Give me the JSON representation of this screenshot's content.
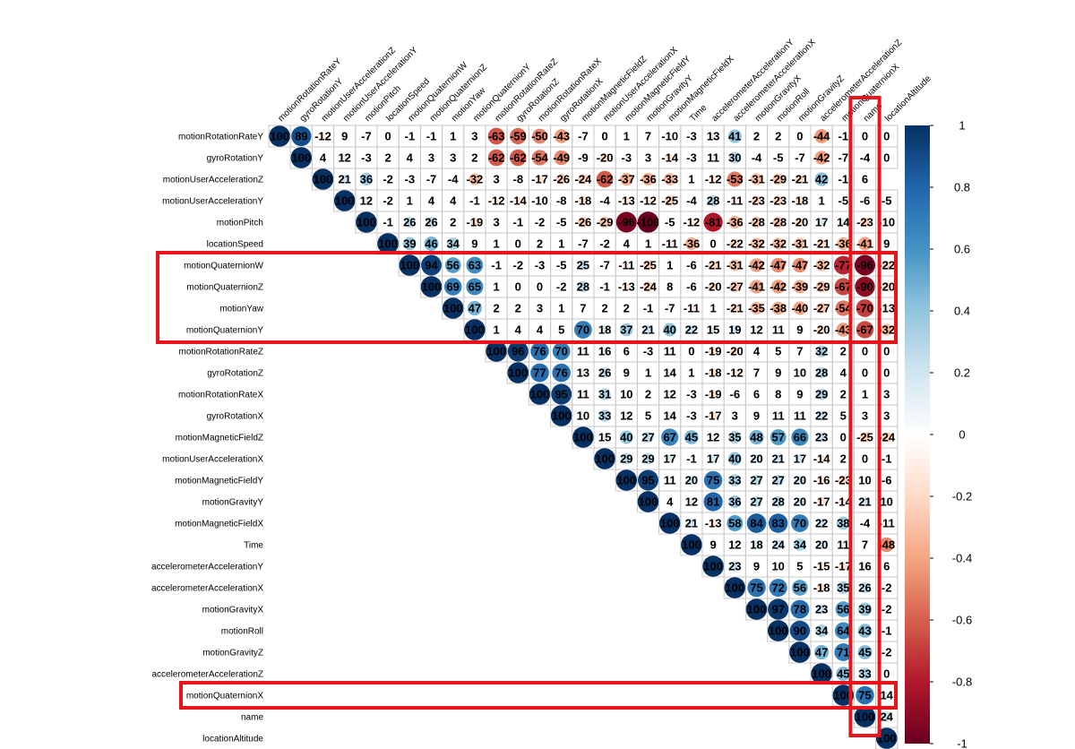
{
  "chart_data": {
    "type": "heatmap",
    "variables": [
      "motionRotationRateY",
      "gyroRotationY",
      "motionUserAccelerationZ",
      "motionUserAccelerationY",
      "motionPitch",
      "locationSpeed",
      "motionQuaternionW",
      "motionQuaternionZ",
      "motionYaw",
      "motionQuaternionY",
      "motionRotationRateZ",
      "gyroRotationZ",
      "motionRotationRateX",
      "gyroRotationX",
      "motionMagneticFieldZ",
      "motionUserAccelerationX",
      "motionMagneticFieldY",
      "motionGravityY",
      "motionMagneticFieldX",
      "Time",
      "accelerometerAccelerationY",
      "accelerometerAccelerationX",
      "motionGravityX",
      "motionRoll",
      "motionGravityZ",
      "accelerometerAccelerationZ",
      "motionQuaternionX",
      "name",
      "locationAltitude"
    ],
    "matrix_upper": [
      [
        100,
        89,
        -12,
        9,
        -7,
        0,
        -1,
        -1,
        1,
        3,
        -63,
        -59,
        -50,
        -43,
        -7,
        0,
        1,
        7,
        -10,
        -3,
        13,
        41,
        2,
        2,
        0,
        -44,
        -1,
        0,
        0
      ],
      [
        100,
        4,
        12,
        -3,
        2,
        4,
        3,
        3,
        2,
        -62,
        -62,
        -54,
        -49,
        -9,
        -20,
        -3,
        3,
        -14,
        -3,
        11,
        30,
        -4,
        -5,
        -7,
        -42,
        -7,
        -4,
        0
      ],
      [
        100,
        21,
        36,
        -2,
        -3,
        -7,
        -4,
        -32,
        3,
        -8,
        -17,
        -26,
        -24,
        -62,
        -37,
        -36,
        -33,
        1,
        -12,
        -53,
        -31,
        -29,
        -21,
        42,
        -1,
        6
      ],
      [
        100,
        12,
        -2,
        1,
        4,
        4,
        -1,
        -12,
        -14,
        -10,
        -8,
        -18,
        -4,
        -13,
        -12,
        -25,
        -4,
        28,
        -11,
        -23,
        -23,
        -18,
        1,
        -5,
        -6,
        -5
      ],
      [
        100,
        -1,
        26,
        26,
        2,
        -19,
        3,
        -1,
        -2,
        -5,
        -26,
        -29,
        -96,
        -100,
        -5,
        -12,
        -81,
        -36,
        -28,
        -28,
        -20,
        17,
        14,
        -23,
        -10
      ],
      [
        100,
        39,
        46,
        34,
        9,
        1,
        0,
        2,
        1,
        -7,
        -2,
        4,
        1,
        -11,
        -36,
        0,
        -22,
        -32,
        -32,
        -31,
        -21,
        -36,
        -41,
        9
      ],
      [
        100,
        94,
        56,
        63,
        -1,
        -2,
        -3,
        -5,
        25,
        -7,
        -11,
        -25,
        1,
        -6,
        -21,
        -31,
        -42,
        -47,
        -47,
        -32,
        -77,
        -96,
        -22
      ],
      [
        100,
        69,
        65,
        1,
        0,
        0,
        -2,
        28,
        -1,
        -13,
        -24,
        8,
        -6,
        -20,
        -27,
        -41,
        -42,
        -39,
        -29,
        -67,
        -90,
        -20
      ],
      [
        100,
        47,
        2,
        2,
        3,
        1,
        7,
        2,
        2,
        -1,
        -7,
        -11,
        1,
        -21,
        -35,
        -38,
        -40,
        -27,
        -54,
        -70,
        -13
      ],
      [
        100,
        1,
        4,
        4,
        5,
        70,
        18,
        37,
        21,
        40,
        22,
        15,
        19,
        12,
        11,
        9,
        -20,
        -43,
        -67,
        -32
      ],
      [
        100,
        96,
        76,
        70,
        11,
        16,
        6,
        -3,
        11,
        0,
        -19,
        -20,
        4,
        5,
        7,
        32,
        2,
        0,
        0
      ],
      [
        100,
        77,
        76,
        13,
        26,
        9,
        1,
        14,
        1,
        -18,
        -12,
        7,
        9,
        10,
        28,
        4,
        0,
        0
      ],
      [
        100,
        95,
        11,
        31,
        10,
        2,
        12,
        -3,
        -19,
        -6,
        6,
        8,
        9,
        29,
        2,
        1,
        3
      ],
      [
        100,
        10,
        33,
        12,
        5,
        14,
        -3,
        -17,
        3,
        9,
        11,
        11,
        22,
        5,
        3,
        3
      ],
      [
        100,
        15,
        40,
        27,
        67,
        45,
        12,
        35,
        48,
        57,
        66,
        23,
        0,
        -25,
        -24
      ],
      [
        100,
        29,
        29,
        17,
        -1,
        17,
        40,
        20,
        21,
        17,
        -14,
        2,
        0,
        -1
      ],
      [
        100,
        95,
        11,
        20,
        75,
        33,
        27,
        27,
        20,
        -16,
        -23,
        10,
        -6
      ],
      [
        100,
        4,
        12,
        81,
        36,
        27,
        28,
        20,
        -17,
        -14,
        21,
        10
      ],
      [
        100,
        21,
        -13,
        58,
        84,
        83,
        70,
        22,
        38,
        -4,
        -11
      ],
      [
        100,
        9,
        12,
        18,
        24,
        34,
        20,
        11,
        7,
        -48
      ],
      [
        100,
        23,
        9,
        10,
        5,
        -15,
        -17,
        16,
        6
      ],
      [
        100,
        75,
        72,
        56,
        -18,
        35,
        26,
        -2
      ],
      [
        100,
        97,
        78,
        23,
        56,
        39,
        -2
      ],
      [
        100,
        90,
        34,
        64,
        43,
        -1
      ],
      [
        100,
        47,
        71,
        45,
        -2
      ],
      [
        100,
        45,
        33,
        0
      ],
      [
        100,
        75,
        14
      ],
      [
        100,
        24
      ],
      [
        100
      ]
    ],
    "colorbar": {
      "min": -1,
      "max": 1,
      "ticks": [
        "1",
        "0.8",
        "0.6",
        "0.4",
        "0.2",
        "0",
        "-0.2",
        "-0.4",
        "-0.6",
        "-0.8",
        "-1"
      ]
    },
    "colors": {
      "negative_end": "#67001f",
      "positive_end": "#053061",
      "highlight": "#e8141c"
    },
    "highlights": [
      {
        "type": "rows",
        "from": 6,
        "to": 9
      },
      {
        "type": "rows",
        "from": 26,
        "to": 26
      },
      {
        "type": "column",
        "index": 27
      }
    ]
  }
}
